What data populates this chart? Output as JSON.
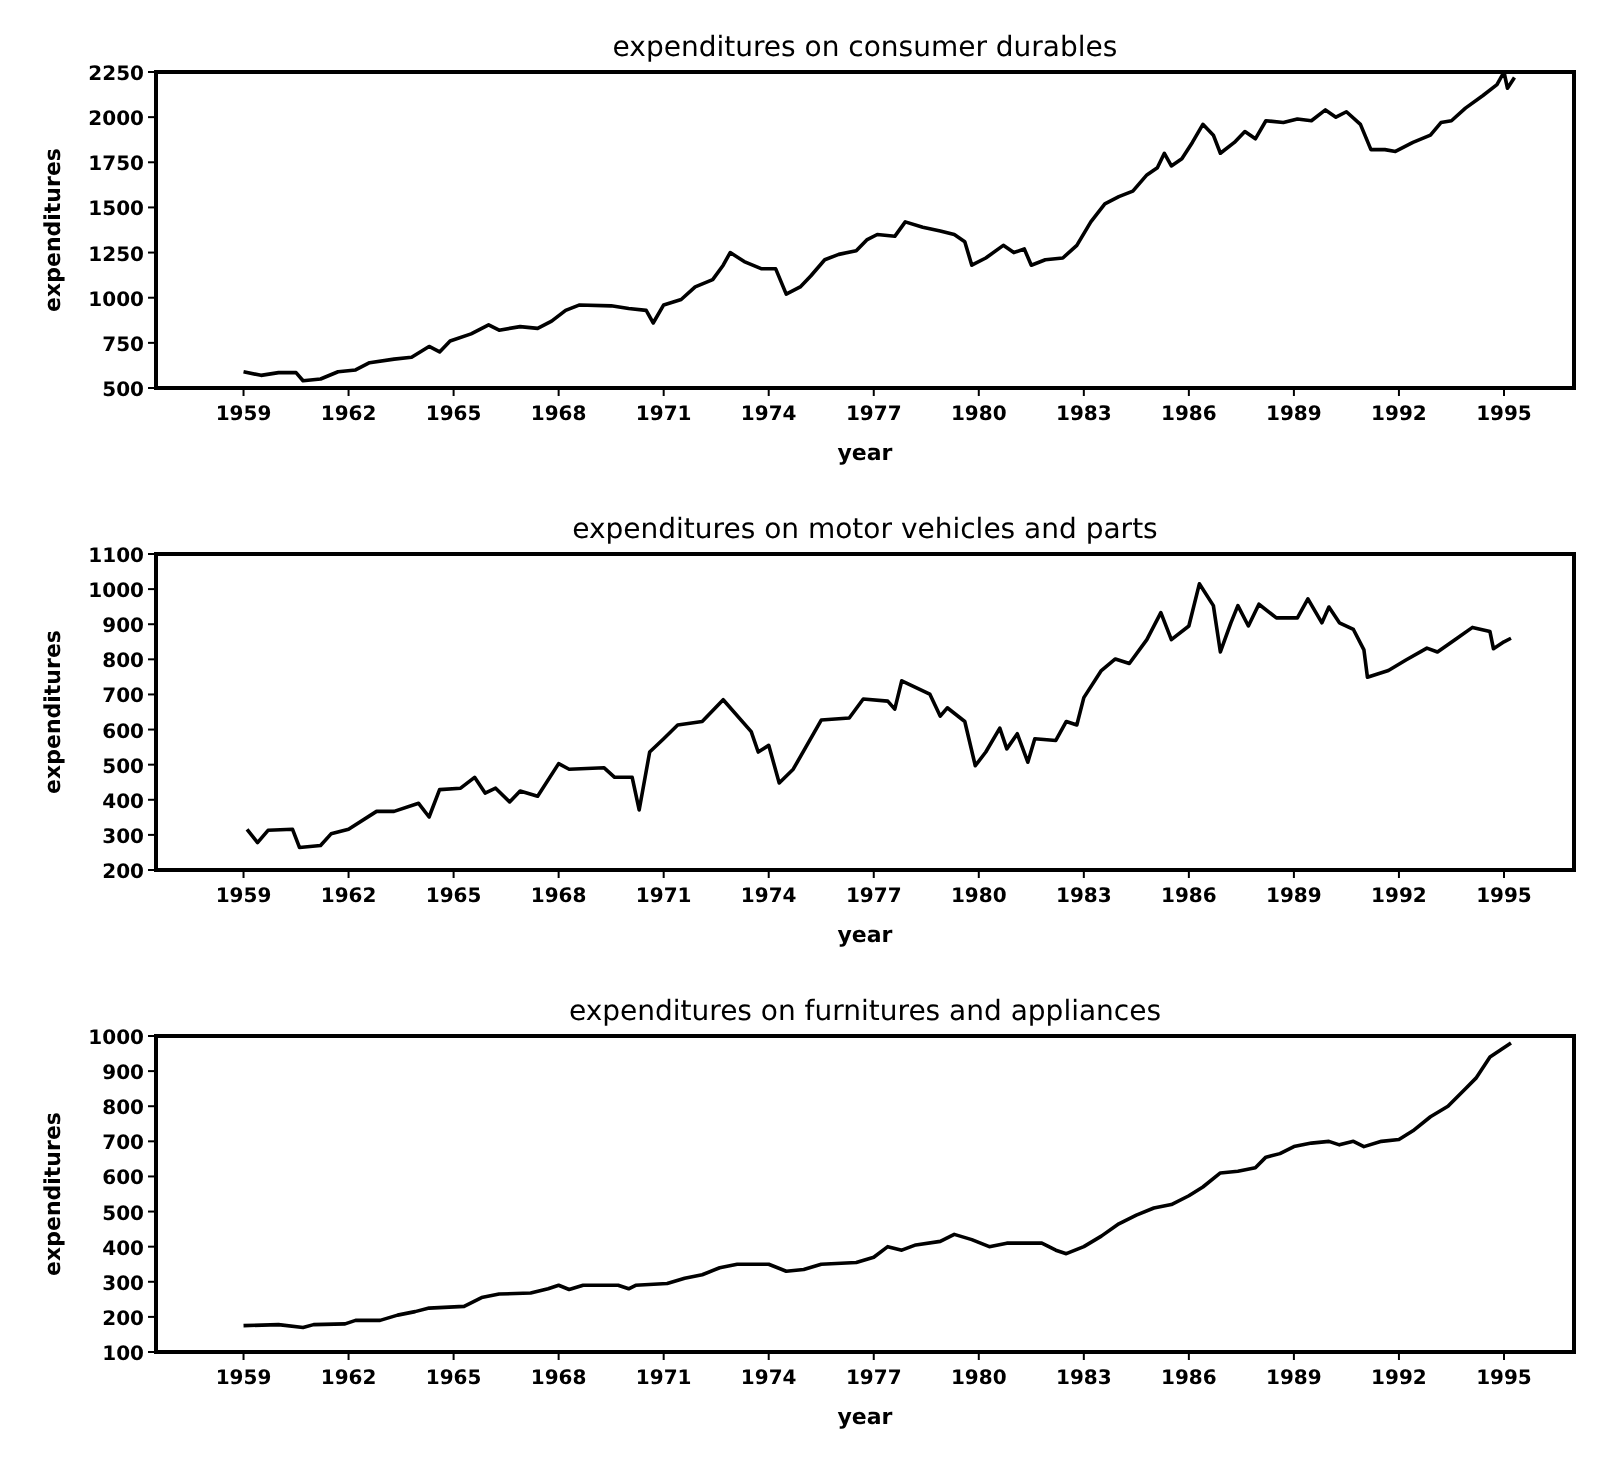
{
  "chart_data": [
    {
      "type": "line",
      "title": "expenditures on consumer durables",
      "xlabel": "year",
      "ylabel": "expenditures",
      "xlim": [
        1956.5,
        1997
      ],
      "ylim": [
        500,
        2250
      ],
      "xticks": [
        1959,
        1962,
        1965,
        1968,
        1971,
        1974,
        1977,
        1980,
        1983,
        1986,
        1989,
        1992,
        1995
      ],
      "yticks": [
        500,
        750,
        1000,
        1250,
        1500,
        1750,
        2000,
        2250
      ],
      "series": [
        {
          "color": "#000000",
          "x": [
            1959.0,
            1959.5,
            1960.0,
            1960.5,
            1960.7,
            1961.2,
            1961.7,
            1962.2,
            1962.6,
            1963.3,
            1963.8,
            1964.3,
            1964.6,
            1964.9,
            1965.5,
            1966.0,
            1966.3,
            1966.9,
            1967.4,
            1967.8,
            1968.2,
            1968.6,
            1969.5,
            1970.0,
            1970.5,
            1970.7,
            1971.0,
            1971.5,
            1971.9,
            1972.4,
            1972.7,
            1972.9,
            1973.3,
            1973.8,
            1974.2,
            1974.5,
            1974.9,
            1975.2,
            1975.6,
            1976.0,
            1976.5,
            1976.8,
            1977.1,
            1977.6,
            1977.9,
            1978.4,
            1978.9,
            1979.3,
            1979.6,
            1979.8,
            1980.2,
            1980.7,
            1981.0,
            1981.3,
            1981.5,
            1981.9,
            1982.4,
            1982.8,
            1983.2,
            1983.6,
            1984.0,
            1984.4,
            1984.8,
            1985.1,
            1985.3,
            1985.5,
            1985.8,
            1986.1,
            1986.4,
            1986.7,
            1986.9,
            1987.3,
            1987.6,
            1987.9,
            1988.2,
            1988.7,
            1989.1,
            1989.5,
            1989.9,
            1990.2,
            1990.5,
            1990.9,
            1991.2,
            1991.6,
            1991.9,
            1992.4,
            1992.9,
            1993.2,
            1993.5,
            1993.9,
            1994.4,
            1994.8,
            1995.0,
            1995.1,
            1995.3
          ],
          "values": [
            590,
            570,
            585,
            585,
            540,
            550,
            590,
            600,
            640,
            660,
            670,
            730,
            700,
            760,
            800,
            850,
            820,
            840,
            830,
            870,
            930,
            960,
            955,
            940,
            930,
            860,
            960,
            990,
            1060,
            1100,
            1180,
            1250,
            1200,
            1160,
            1160,
            1020,
            1060,
            1120,
            1210,
            1240,
            1260,
            1320,
            1350,
            1340,
            1420,
            1390,
            1370,
            1350,
            1310,
            1180,
            1220,
            1290,
            1250,
            1270,
            1180,
            1210,
            1220,
            1290,
            1420,
            1520,
            1560,
            1590,
            1680,
            1720,
            1800,
            1730,
            1770,
            1860,
            1960,
            1900,
            1800,
            1860,
            1920,
            1880,
            1980,
            1970,
            1990,
            1980,
            2040,
            2000,
            2030,
            1960,
            1820,
            1820,
            1810,
            1860,
            1900,
            1970,
            1980,
            2050,
            2120,
            2180,
            2250,
            2160,
            2220
          ]
        }
      ]
    },
    {
      "type": "line",
      "title": "expenditures on motor vehicles and parts",
      "xlabel": "year",
      "ylabel": "expenditures",
      "xlim": [
        1956.5,
        1997
      ],
      "ylim": [
        200,
        1100
      ],
      "xticks": [
        1959,
        1962,
        1965,
        1968,
        1971,
        1974,
        1977,
        1980,
        1983,
        1986,
        1989,
        1992,
        1995
      ],
      "yticks": [
        200,
        300,
        400,
        500,
        600,
        700,
        800,
        900,
        1000,
        1100
      ],
      "series": [
        {
          "color": "#000000",
          "x": [
            1959.1,
            1959.4,
            1959.7,
            1960.4,
            1960.6,
            1961.2,
            1961.5,
            1962.0,
            1962.8,
            1963.3,
            1964.0,
            1964.3,
            1964.6,
            1965.2,
            1965.6,
            1965.9,
            1966.2,
            1966.6,
            1966.9,
            1967.4,
            1968.0,
            1968.3,
            1969.3,
            1969.6,
            1970.1,
            1970.3,
            1970.6,
            1971.0,
            1971.4,
            1972.1,
            1972.7,
            1973.5,
            1973.7,
            1974.0,
            1974.3,
            1974.7,
            1975.5,
            1976.3,
            1976.7,
            1977.4,
            1977.6,
            1977.8,
            1978.6,
            1978.9,
            1979.1,
            1979.6,
            1979.9,
            1980.2,
            1980.6,
            1980.8,
            1981.1,
            1981.4,
            1981.6,
            1982.2,
            1982.5,
            1982.8,
            1983.0,
            1983.5,
            1983.9,
            1984.3,
            1984.8,
            1985.2,
            1985.5,
            1986.0,
            1986.3,
            1986.7,
            1986.9,
            1987.2,
            1987.4,
            1987.7,
            1988.0,
            1988.5,
            1989.1,
            1989.4,
            1989.8,
            1990.0,
            1990.3,
            1990.7,
            1991.0,
            1991.1,
            1991.7,
            1992.2,
            1992.8,
            1993.1,
            1993.6,
            1994.1,
            1994.6,
            1994.7,
            1995.0,
            1995.2
          ],
          "values": [
            316,
            278,
            313,
            316,
            264,
            270,
            303,
            316,
            367,
            367,
            390,
            351,
            429,
            433,
            464,
            419,
            433,
            394,
            425,
            410,
            503,
            487,
            491,
            464,
            464,
            371,
            536,
            574,
            613,
            623,
            685,
            594,
            536,
            555,
            448,
            487,
            627,
            633,
            687,
            681,
            658,
            739,
            701,
            638,
            662,
            623,
            497,
            536,
            604,
            545,
            588,
            507,
            574,
            569,
            623,
            613,
            691,
            768,
            801,
            788,
            856,
            933,
            856,
            895,
            1015,
            953,
            821,
            904,
            953,
            895,
            957,
            918,
            918,
            972,
            904,
            949,
            904,
            885,
            827,
            749,
            768,
            798,
            832,
            821,
            856,
            891,
            879,
            830,
            850,
            860
          ]
        }
      ]
    },
    {
      "type": "line",
      "title": "expenditures on furnitures and appliances",
      "xlabel": "year",
      "ylabel": "expenditures",
      "xlim": [
        1956.5,
        1997
      ],
      "ylim": [
        100,
        1000
      ],
      "xticks": [
        1959,
        1962,
        1965,
        1968,
        1971,
        1974,
        1977,
        1980,
        1983,
        1986,
        1989,
        1992,
        1995
      ],
      "yticks": [
        100,
        200,
        300,
        400,
        500,
        600,
        700,
        800,
        900,
        1000
      ],
      "series": [
        {
          "color": "#000000",
          "x": [
            1959.0,
            1960.0,
            1960.7,
            1961.0,
            1961.9,
            1962.2,
            1962.9,
            1963.4,
            1963.9,
            1964.3,
            1965.3,
            1965.8,
            1966.3,
            1967.2,
            1967.7,
            1968.0,
            1968.3,
            1968.7,
            1969.7,
            1970.0,
            1970.2,
            1971.1,
            1971.6,
            1972.1,
            1972.6,
            1973.1,
            1974.0,
            1974.5,
            1975.0,
            1975.5,
            1976.5,
            1977.0,
            1977.4,
            1977.8,
            1978.2,
            1978.9,
            1979.3,
            1979.8,
            1980.3,
            1980.8,
            1981.8,
            1982.2,
            1982.5,
            1983.0,
            1983.5,
            1984.0,
            1984.5,
            1985.0,
            1985.5,
            1986.0,
            1986.4,
            1986.9,
            1987.4,
            1987.9,
            1988.2,
            1988.6,
            1989.0,
            1989.5,
            1990.0,
            1990.3,
            1990.7,
            1991.0,
            1991.5,
            1992.0,
            1992.4,
            1992.9,
            1993.4,
            1993.9,
            1994.2,
            1994.6,
            1994.9,
            1995.2
          ],
          "values": [
            175,
            178,
            170,
            178,
            180,
            190,
            190,
            205,
            215,
            225,
            230,
            255,
            265,
            268,
            280,
            290,
            278,
            290,
            290,
            280,
            290,
            295,
            310,
            320,
            340,
            350,
            350,
            330,
            335,
            350,
            355,
            370,
            400,
            390,
            405,
            415,
            435,
            420,
            400,
            410,
            410,
            390,
            380,
            400,
            430,
            465,
            490,
            510,
            520,
            545,
            570,
            610,
            615,
            625,
            655,
            665,
            685,
            695,
            700,
            690,
            700,
            685,
            700,
            705,
            730,
            770,
            800,
            850,
            880,
            940,
            960,
            980
          ]
        }
      ]
    }
  ]
}
